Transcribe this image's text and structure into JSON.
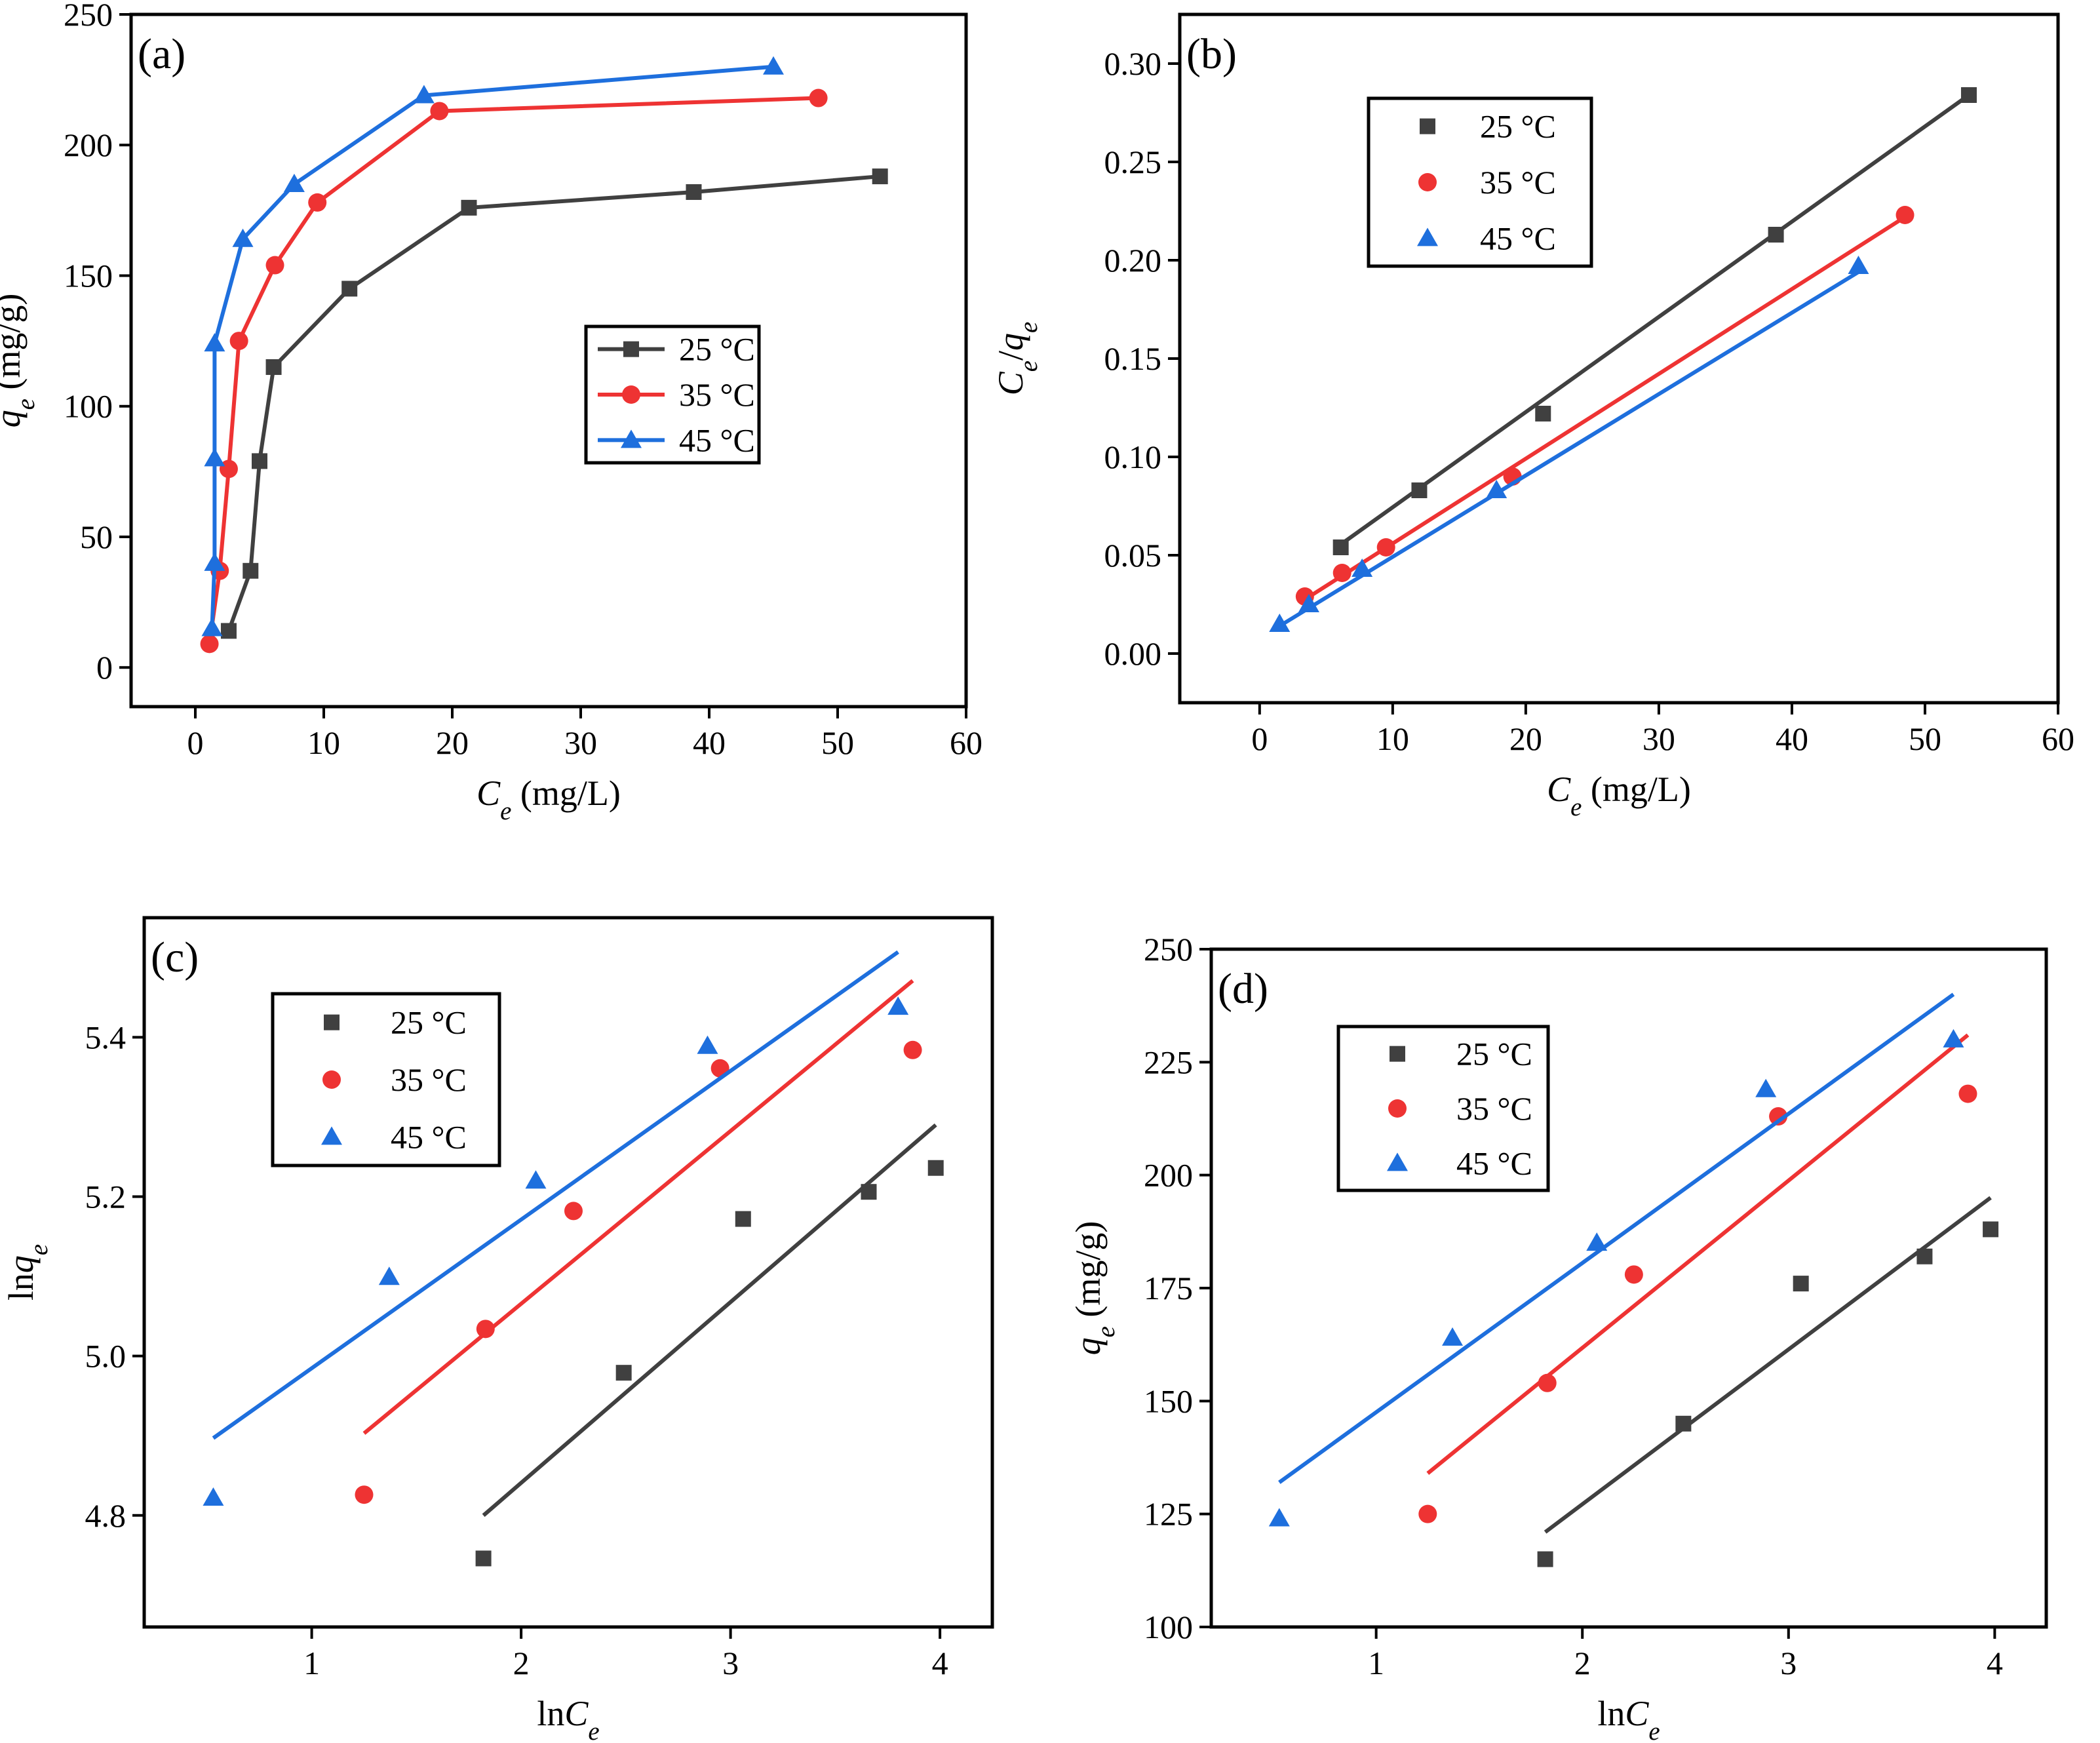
{
  "colors": {
    "s25": "#404040",
    "s35": "#ee3333",
    "s45": "#1e6fdd"
  },
  "chart_data": [
    {
      "type": "line",
      "panel_label": "(a)",
      "xlabel": "C_e (mg/L)",
      "ylabel": "q_e (mg/g)",
      "xlim": [
        -5,
        60
      ],
      "ylim": [
        -15,
        250
      ],
      "xticks": [
        0,
        10,
        20,
        30,
        40,
        50,
        60
      ],
      "yticks": [
        0,
        50,
        100,
        150,
        200,
        250
      ],
      "ytick_format": "int",
      "legend_position": "center-right",
      "legend_with_lines": true,
      "series": [
        {
          "name": "25 °C",
          "marker": "square",
          "connect": true,
          "x": [
            2.6,
            4.3,
            5.0,
            6.1,
            12.0,
            21.3,
            38.8,
            53.3
          ],
          "y": [
            14,
            37,
            79,
            115,
            145,
            176,
            182,
            188
          ]
        },
        {
          "name": "35 °C",
          "marker": "circle",
          "connect": true,
          "x": [
            1.1,
            1.9,
            2.6,
            3.4,
            6.2,
            9.5,
            19.0,
            48.5
          ],
          "y": [
            9,
            37,
            76,
            125,
            154,
            178,
            213,
            218
          ]
        },
        {
          "name": "45 °C",
          "marker": "triangle",
          "connect": true,
          "x": [
            1.3,
            1.5,
            1.5,
            1.5,
            3.7,
            7.7,
            17.8,
            45.0
          ],
          "y": [
            15,
            40,
            80,
            124,
            164,
            185,
            219,
            230
          ]
        }
      ]
    },
    {
      "type": "scatter",
      "panel_label": "(b)",
      "xlabel": "C_e (mg/L)",
      "ylabel": "C_e/q_e",
      "xlim": [
        -6,
        60
      ],
      "ylim": [
        -0.025,
        0.325
      ],
      "xticks": [
        0,
        10,
        20,
        30,
        40,
        50,
        60
      ],
      "yticks": [
        0.0,
        0.05,
        0.1,
        0.15,
        0.2,
        0.25,
        0.3
      ],
      "ytick_format": "2dp",
      "legend_position": "top-left",
      "legend_with_lines": false,
      "series": [
        {
          "name": "25 °C",
          "marker": "square",
          "x": [
            6.1,
            12.0,
            21.3,
            38.8,
            53.3
          ],
          "y": [
            0.054,
            0.083,
            0.122,
            0.213,
            0.284
          ],
          "fit": [
            [
              6.1,
              0.0555
            ],
            [
              53.3,
              0.284
            ]
          ]
        },
        {
          "name": "35 °C",
          "marker": "circle",
          "x": [
            3.4,
            6.2,
            9.5,
            19.0,
            48.5
          ],
          "y": [
            0.029,
            0.041,
            0.054,
            0.09,
            0.223
          ],
          "fit": [
            [
              3.4,
              0.0275
            ],
            [
              48.5,
              0.222
            ]
          ]
        },
        {
          "name": "45 °C",
          "marker": "triangle",
          "x": [
            1.5,
            3.7,
            7.7,
            17.8,
            45.0
          ],
          "y": [
            0.015,
            0.025,
            0.043,
            0.083,
            0.197
          ],
          "fit": [
            [
              1.5,
              0.014
            ],
            [
              45.0,
              0.194
            ]
          ]
        }
      ]
    },
    {
      "type": "scatter",
      "panel_label": "(c)",
      "xlabel": "lnC_e",
      "ylabel": "lnq_e",
      "xlim": [
        0.2,
        4.25
      ],
      "ylim": [
        4.66,
        5.55
      ],
      "xticks": [
        1,
        2,
        3,
        4
      ],
      "yticks": [
        4.8,
        5.0,
        5.2,
        5.4
      ],
      "ytick_format": "1dp",
      "legend_position": "top-left",
      "legend_with_lines": false,
      "series": [
        {
          "name": "25 °C",
          "marker": "square",
          "x": [
            1.82,
            2.49,
            3.06,
            3.66,
            3.98
          ],
          "y": [
            4.746,
            4.979,
            5.172,
            5.206,
            5.236
          ],
          "fit": [
            [
              1.82,
              4.8
            ],
            [
              3.98,
              5.29
            ]
          ]
        },
        {
          "name": "35 °C",
          "marker": "circle",
          "x": [
            1.25,
            1.83,
            2.25,
            2.95,
            3.87
          ],
          "y": [
            4.826,
            5.034,
            5.182,
            5.361,
            5.384
          ],
          "fit": [
            [
              1.25,
              4.903
            ],
            [
              3.87,
              5.471
            ]
          ]
        },
        {
          "name": "45 °C",
          "marker": "triangle",
          "x": [
            0.53,
            1.37,
            2.07,
            2.89,
            3.8
          ],
          "y": [
            4.822,
            5.099,
            5.22,
            5.389,
            5.438
          ],
          "fit": [
            [
              0.53,
              4.897
            ],
            [
              3.8,
              5.507
            ]
          ]
        }
      ]
    },
    {
      "type": "scatter",
      "panel_label": "(d)",
      "xlabel": "lnC_e",
      "ylabel": "q_e (mg/g)",
      "xlim": [
        0.2,
        4.25
      ],
      "ylim": [
        100,
        250
      ],
      "xticks": [
        1,
        2,
        3,
        4
      ],
      "yticks": [
        100,
        125,
        150,
        175,
        200,
        225,
        250
      ],
      "ytick_format": "int",
      "legend_position": "top-left",
      "legend_with_lines": false,
      "series": [
        {
          "name": "25 °C",
          "marker": "square",
          "x": [
            1.82,
            2.49,
            3.06,
            3.66,
            3.98
          ],
          "y": [
            115,
            145,
            176,
            182,
            188
          ],
          "fit": [
            [
              1.82,
              121
            ],
            [
              3.98,
              195
            ]
          ]
        },
        {
          "name": "35 °C",
          "marker": "circle",
          "x": [
            1.25,
            1.83,
            2.25,
            2.95,
            3.87
          ],
          "y": [
            125,
            154,
            178,
            213,
            218
          ],
          "fit": [
            [
              1.25,
              134
            ],
            [
              3.87,
              231
            ]
          ]
        },
        {
          "name": "45 °C",
          "marker": "triangle",
          "x": [
            0.53,
            1.37,
            2.07,
            2.89,
            3.8
          ],
          "y": [
            124,
            164,
            185,
            219,
            230
          ],
          "fit": [
            [
              0.53,
              132
            ],
            [
              3.8,
              240
            ]
          ]
        }
      ]
    }
  ]
}
